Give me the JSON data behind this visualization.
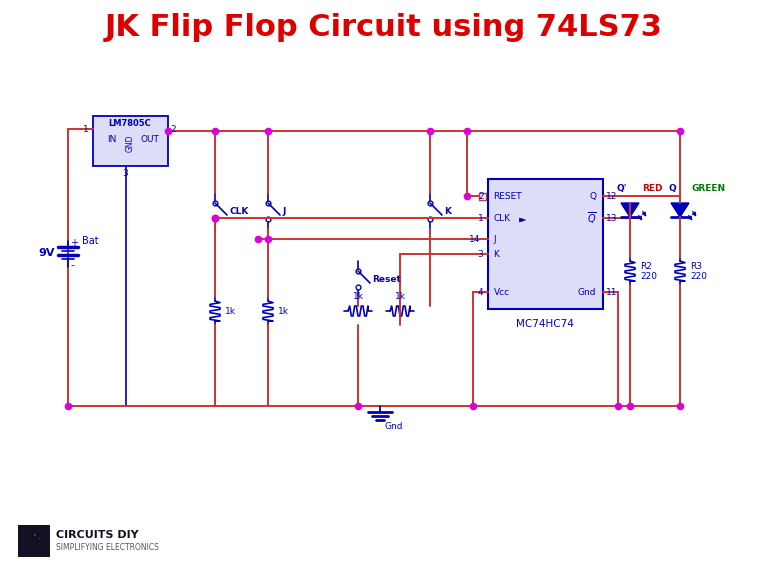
{
  "title": "JK Flip Flop Circuit using 74LS73",
  "title_color": "#DD0000",
  "title_fontsize": 22,
  "bg_color": "#FFFFFF",
  "wire_color": "#CC3333",
  "component_color": "#0000BB",
  "dot_color": "#DD00DD",
  "fig_width": 7.68,
  "fig_height": 5.81,
  "dpi": 100,
  "logo_text": "CIRCUITS DIY",
  "logo_sub": "SIMPLIFYING ELECTRONICS",
  "ic_face": "#DDDDF8",
  "reg_face": "#DDDDF8"
}
